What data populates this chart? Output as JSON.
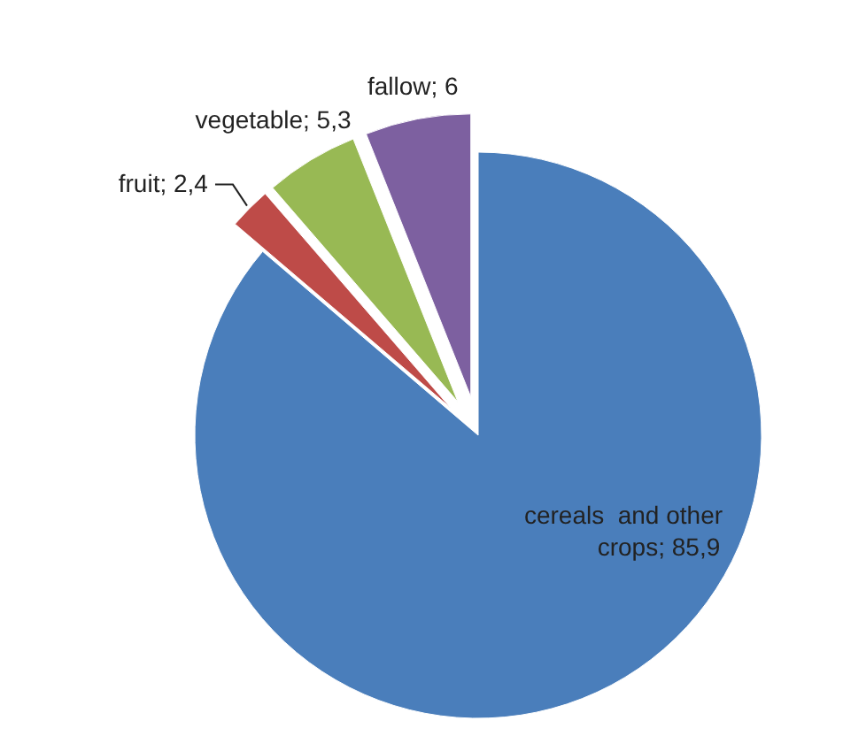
{
  "chart_data": {
    "type": "pie",
    "categories": [
      "cereals  and other crops",
      "fruit",
      "vegetable",
      "fallow"
    ],
    "values": [
      85.9,
      2.4,
      5.3,
      6
    ],
    "value_labels": [
      "85,9",
      "2,4",
      "5,3",
      "6"
    ],
    "colors": [
      "#4a7ebb",
      "#be4b48",
      "#98b954",
      "#7d60a0"
    ]
  }
}
